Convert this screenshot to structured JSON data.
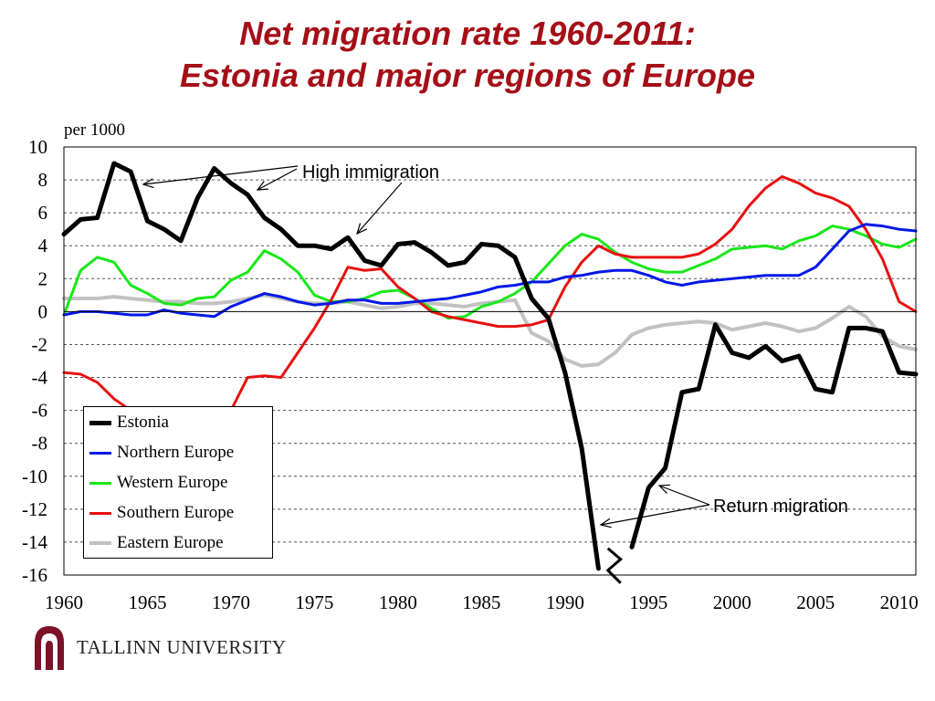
{
  "title_line1": "Net migration rate 1960-2011:",
  "title_line2": "Estonia and major regions of Europe",
  "logo_text": "TALLINN UNIVERSITY",
  "colors": {
    "title": "#a50f17",
    "logo": "#7b1328"
  },
  "chart_data": {
    "type": "line",
    "ylabel": "per 1000",
    "xlim": [
      1960,
      2011
    ],
    "ylim": [
      -16,
      10
    ],
    "x_ticks": [
      1960,
      1965,
      1970,
      1975,
      1980,
      1985,
      1990,
      1995,
      2000,
      2005,
      2010
    ],
    "y_ticks": [
      10,
      8,
      6,
      4,
      2,
      0,
      -2,
      -4,
      -6,
      -8,
      -10,
      -12,
      -14,
      -16
    ],
    "grid": true,
    "legend_position": "bottom-left",
    "annotations": [
      "High immigration",
      "Return migration"
    ],
    "series": [
      {
        "name": "Estonia",
        "color": "#000000",
        "values": [
          [
            1960,
            4.7
          ],
          [
            1961,
            5.6
          ],
          [
            1962,
            5.7
          ],
          [
            1963,
            9.0
          ],
          [
            1964,
            8.5
          ],
          [
            1965,
            5.5
          ],
          [
            1966,
            5.0
          ],
          [
            1967,
            4.3
          ],
          [
            1968,
            6.9
          ],
          [
            1969,
            8.7
          ],
          [
            1970,
            7.8
          ],
          [
            1971,
            7.1
          ],
          [
            1972,
            5.7
          ],
          [
            1973,
            5.0
          ],
          [
            1974,
            4.0
          ],
          [
            1975,
            4.0
          ],
          [
            1976,
            3.8
          ],
          [
            1977,
            4.5
          ],
          [
            1978,
            3.1
          ],
          [
            1979,
            2.8
          ],
          [
            1980,
            4.1
          ],
          [
            1981,
            4.2
          ],
          [
            1982,
            3.6
          ],
          [
            1983,
            2.8
          ],
          [
            1984,
            3.0
          ],
          [
            1985,
            4.1
          ],
          [
            1986,
            4.0
          ],
          [
            1987,
            3.3
          ],
          [
            1988,
            0.8
          ],
          [
            1989,
            -0.4
          ],
          [
            1990,
            -3.7
          ],
          [
            1991,
            -8.3
          ],
          [
            1992,
            -15.6
          ],
          [
            1993,
            null
          ],
          [
            1994,
            -14.3
          ],
          [
            1995,
            -10.7
          ],
          [
            1996,
            -9.5
          ],
          [
            1997,
            -4.9
          ],
          [
            1998,
            -4.7
          ],
          [
            1999,
            -0.8
          ],
          [
            2000,
            -2.5
          ],
          [
            2001,
            -2.8
          ],
          [
            2002,
            -2.1
          ],
          [
            2003,
            -3.0
          ],
          [
            2004,
            -2.7
          ],
          [
            2005,
            -4.7
          ],
          [
            2006,
            -4.9
          ],
          [
            2007,
            -1.0
          ],
          [
            2008,
            -1.0
          ],
          [
            2009,
            -1.2
          ],
          [
            2010,
            -3.7
          ],
          [
            2011,
            -3.8
          ]
        ]
      },
      {
        "name": "Northern Europe",
        "color": "#0018e8",
        "values": [
          [
            1960,
            -0.2
          ],
          [
            1961,
            0.0
          ],
          [
            1962,
            0.0
          ],
          [
            1963,
            -0.1
          ],
          [
            1964,
            -0.2
          ],
          [
            1965,
            -0.2
          ],
          [
            1966,
            0.1
          ],
          [
            1967,
            -0.1
          ],
          [
            1968,
            -0.2
          ],
          [
            1969,
            -0.3
          ],
          [
            1970,
            0.3
          ],
          [
            1971,
            0.7
          ],
          [
            1972,
            1.1
          ],
          [
            1973,
            0.9
          ],
          [
            1974,
            0.6
          ],
          [
            1975,
            0.4
          ],
          [
            1976,
            0.5
          ],
          [
            1977,
            0.7
          ],
          [
            1978,
            0.7
          ],
          [
            1979,
            0.5
          ],
          [
            1980,
            0.5
          ],
          [
            1981,
            0.6
          ],
          [
            1982,
            0.7
          ],
          [
            1983,
            0.8
          ],
          [
            1984,
            1.0
          ],
          [
            1985,
            1.2
          ],
          [
            1986,
            1.5
          ],
          [
            1987,
            1.6
          ],
          [
            1988,
            1.8
          ],
          [
            1989,
            1.8
          ],
          [
            1990,
            2.1
          ],
          [
            1991,
            2.2
          ],
          [
            1992,
            2.4
          ],
          [
            1993,
            2.5
          ],
          [
            1994,
            2.5
          ],
          [
            1995,
            2.2
          ],
          [
            1996,
            1.8
          ],
          [
            1997,
            1.6
          ],
          [
            1998,
            1.8
          ],
          [
            1999,
            1.9
          ],
          [
            2000,
            2.0
          ],
          [
            2001,
            2.1
          ],
          [
            2002,
            2.2
          ],
          [
            2003,
            2.2
          ],
          [
            2004,
            2.2
          ],
          [
            2005,
            2.7
          ],
          [
            2006,
            3.8
          ],
          [
            2007,
            4.9
          ],
          [
            2008,
            5.3
          ],
          [
            2009,
            5.2
          ],
          [
            2010,
            5.0
          ],
          [
            2011,
            4.9
          ]
        ]
      },
      {
        "name": "Western Europe",
        "color": "#18e818",
        "values": [
          [
            1960,
            -0.2
          ],
          [
            1961,
            2.5
          ],
          [
            1962,
            3.3
          ],
          [
            1963,
            3.0
          ],
          [
            1964,
            1.6
          ],
          [
            1965,
            1.1
          ],
          [
            1966,
            0.5
          ],
          [
            1967,
            0.4
          ],
          [
            1968,
            0.8
          ],
          [
            1969,
            0.9
          ],
          [
            1970,
            1.9
          ],
          [
            1971,
            2.4
          ],
          [
            1972,
            3.7
          ],
          [
            1973,
            3.2
          ],
          [
            1974,
            2.4
          ],
          [
            1975,
            1.0
          ],
          [
            1976,
            0.6
          ],
          [
            1977,
            0.6
          ],
          [
            1978,
            0.8
          ],
          [
            1979,
            1.2
          ],
          [
            1980,
            1.3
          ],
          [
            1981,
            0.8
          ],
          [
            1982,
            0.2
          ],
          [
            1983,
            -0.4
          ],
          [
            1984,
            -0.3
          ],
          [
            1985,
            0.3
          ],
          [
            1986,
            0.6
          ],
          [
            1987,
            1.1
          ],
          [
            1988,
            1.8
          ],
          [
            1989,
            2.9
          ],
          [
            1990,
            4.0
          ],
          [
            1991,
            4.7
          ],
          [
            1992,
            4.4
          ],
          [
            1993,
            3.6
          ],
          [
            1994,
            3.0
          ],
          [
            1995,
            2.6
          ],
          [
            1996,
            2.4
          ],
          [
            1997,
            2.4
          ],
          [
            1998,
            2.8
          ],
          [
            1999,
            3.2
          ],
          [
            2000,
            3.8
          ],
          [
            2001,
            3.9
          ],
          [
            2002,
            4.0
          ],
          [
            2003,
            3.8
          ],
          [
            2004,
            4.3
          ],
          [
            2005,
            4.6
          ],
          [
            2006,
            5.2
          ],
          [
            2007,
            5.0
          ],
          [
            2008,
            4.6
          ],
          [
            2009,
            4.1
          ],
          [
            2010,
            3.9
          ],
          [
            2011,
            4.4
          ]
        ]
      },
      {
        "name": "Southern Europe",
        "color": "#e81010",
        "values": [
          [
            1960,
            -3.7
          ],
          [
            1961,
            -3.8
          ],
          [
            1962,
            -4.3
          ],
          [
            1963,
            -5.3
          ],
          [
            1964,
            -6.0
          ],
          [
            1965,
            null
          ],
          [
            1966,
            null
          ],
          [
            1967,
            null
          ],
          [
            1968,
            null
          ],
          [
            1969,
            null
          ],
          [
            1970,
            -6.0
          ],
          [
            1971,
            -4.0
          ],
          [
            1972,
            -3.9
          ],
          [
            1973,
            -4.0
          ],
          [
            1974,
            -2.5
          ],
          [
            1975,
            -1.0
          ],
          [
            1976,
            0.7
          ],
          [
            1977,
            2.7
          ],
          [
            1978,
            2.5
          ],
          [
            1979,
            2.6
          ],
          [
            1980,
            1.5
          ],
          [
            1981,
            0.8
          ],
          [
            1982,
            0.0
          ],
          [
            1983,
            -0.3
          ],
          [
            1984,
            -0.5
          ],
          [
            1985,
            -0.7
          ],
          [
            1986,
            -0.9
          ],
          [
            1987,
            -0.9
          ],
          [
            1988,
            -0.8
          ],
          [
            1989,
            -0.5
          ],
          [
            1990,
            1.5
          ],
          [
            1991,
            3.0
          ],
          [
            1992,
            4.0
          ],
          [
            1993,
            3.5
          ],
          [
            1994,
            3.3
          ],
          [
            1995,
            3.3
          ],
          [
            1996,
            3.3
          ],
          [
            1997,
            3.3
          ],
          [
            1998,
            3.5
          ],
          [
            1999,
            4.1
          ],
          [
            2000,
            5.0
          ],
          [
            2001,
            6.4
          ],
          [
            2002,
            7.5
          ],
          [
            2003,
            8.2
          ],
          [
            2004,
            7.8
          ],
          [
            2005,
            7.2
          ],
          [
            2006,
            6.9
          ],
          [
            2007,
            6.4
          ],
          [
            2008,
            5.0
          ],
          [
            2009,
            3.2
          ],
          [
            2010,
            0.6
          ],
          [
            2011,
            0.0
          ]
        ]
      },
      {
        "name": "Eastern Europe",
        "color": "#c2c2c2",
        "values": [
          [
            1960,
            0.8
          ],
          [
            1961,
            0.8
          ],
          [
            1962,
            0.8
          ],
          [
            1963,
            0.9
          ],
          [
            1964,
            0.8
          ],
          [
            1965,
            0.7
          ],
          [
            1966,
            0.6
          ],
          [
            1967,
            0.6
          ],
          [
            1968,
            0.5
          ],
          [
            1969,
            0.5
          ],
          [
            1970,
            0.6
          ],
          [
            1971,
            0.8
          ],
          [
            1972,
            1.0
          ],
          [
            1973,
            0.8
          ],
          [
            1974,
            0.6
          ],
          [
            1975,
            0.5
          ],
          [
            1976,
            0.5
          ],
          [
            1977,
            0.6
          ],
          [
            1978,
            0.4
          ],
          [
            1979,
            0.2
          ],
          [
            1980,
            0.3
          ],
          [
            1981,
            0.5
          ],
          [
            1982,
            0.5
          ],
          [
            1983,
            0.4
          ],
          [
            1984,
            0.3
          ],
          [
            1985,
            0.5
          ],
          [
            1986,
            0.6
          ],
          [
            1987,
            0.7
          ],
          [
            1988,
            -1.3
          ],
          [
            1989,
            -1.8
          ],
          [
            1990,
            -2.9
          ],
          [
            1991,
            -3.3
          ],
          [
            1992,
            -3.2
          ],
          [
            1993,
            -2.5
          ],
          [
            1994,
            -1.4
          ],
          [
            1995,
            -1.0
          ],
          [
            1996,
            -0.8
          ],
          [
            1997,
            -0.7
          ],
          [
            1998,
            -0.6
          ],
          [
            1999,
            -0.7
          ],
          [
            2000,
            -1.1
          ],
          [
            2001,
            -0.9
          ],
          [
            2002,
            -0.7
          ],
          [
            2003,
            -0.9
          ],
          [
            2004,
            -1.2
          ],
          [
            2005,
            -1.0
          ],
          [
            2006,
            -0.4
          ],
          [
            2007,
            0.3
          ],
          [
            2008,
            -0.3
          ],
          [
            2009,
            -1.5
          ],
          [
            2010,
            -2.1
          ],
          [
            2011,
            -2.3
          ]
        ]
      }
    ]
  }
}
